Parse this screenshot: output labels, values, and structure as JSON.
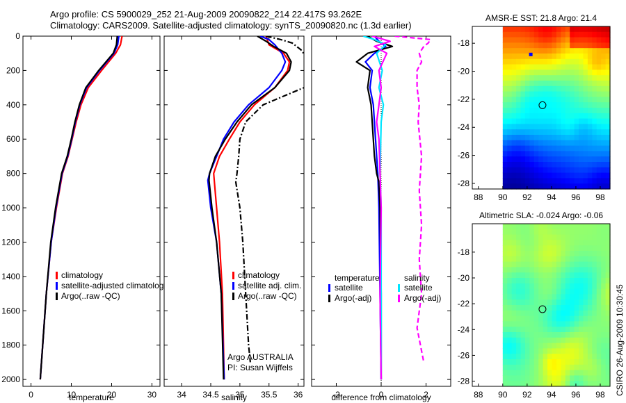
{
  "header": {
    "line1": "Argo profile: CS 5900029_252 21-Aug-2009 20090822_214 22.417S 93.262E",
    "line2": "Climatology: CARS2009. Satellite-adjusted climatology: synTS_20090820.nc (1.3d earlier)"
  },
  "stamp": "CSIRO 26-Aug-2009 10:30:45",
  "colors": {
    "climatology": "#ff0000",
    "satellite": "#0000ff",
    "argo": "#000000",
    "diff_sal_satellite": "#00e5ff",
    "diff_sal_argo": "#ff00ff"
  },
  "chart_data": [
    {
      "type": "line",
      "panel": "temperature",
      "xlabel": "temperature",
      "ylabel": "",
      "xlim": [
        -2,
        32
      ],
      "ylim": [
        2040,
        0
      ],
      "xticks": [
        0,
        10,
        20,
        30
      ],
      "yticks": [
        0,
        200,
        400,
        600,
        800,
        1000,
        1200,
        1400,
        1600,
        1800,
        2000
      ],
      "legend": {
        "position": "lower-right",
        "entries": [
          "climatology",
          "satellite-adjusted climatology",
          "Argo(..raw -QC)"
        ]
      },
      "series": [
        {
          "name": "climatology",
          "color": "#ff0000",
          "depth": [
            0,
            50,
            100,
            200,
            300,
            400,
            500,
            600,
            700,
            800,
            1000,
            1200,
            1500,
            2000
          ],
          "values": [
            22.6,
            22.2,
            21.0,
            17.5,
            14.2,
            12.4,
            11.2,
            10.2,
            9.2,
            7.8,
            6.3,
            5.0,
            3.8,
            2.3
          ]
        },
        {
          "name": "satellite-adjusted climatology",
          "color": "#0000ff",
          "depth": [
            0,
            50,
            100,
            200,
            300,
            400,
            500,
            600,
            700,
            800,
            1000,
            1200,
            1500,
            2000
          ],
          "values": [
            21.8,
            21.5,
            20.6,
            17.0,
            13.8,
            12.1,
            11.0,
            10.1,
            9.1,
            7.7,
            6.2,
            5.0,
            3.8,
            2.3
          ]
        },
        {
          "name": "Argo(..raw -QC)",
          "color": "#000000",
          "depth": [
            0,
            50,
            100,
            200,
            300,
            400,
            500,
            600,
            700,
            800,
            1000,
            1200,
            1500,
            2000
          ],
          "values": [
            21.4,
            21.2,
            20.4,
            16.8,
            13.6,
            12.0,
            10.9,
            10.0,
            9.0,
            7.6,
            6.1,
            4.9,
            3.8,
            2.3
          ]
        }
      ]
    },
    {
      "type": "line",
      "panel": "salinity",
      "xlabel": "salinity",
      "xlim": [
        33.7,
        36.1
      ],
      "ylim": [
        2040,
        0
      ],
      "xticks": [
        34,
        34.5,
        35,
        35.5,
        36
      ],
      "legend": {
        "position": "lower-right",
        "entries": [
          "climatology",
          "satellite adj. clim.",
          "Argo(..raw -QC)"
        ]
      },
      "annotation": [
        "Argo AUSTRALIA",
        "PI: Susan Wijffels"
      ],
      "series": [
        {
          "name": "climatology",
          "color": "#ff0000",
          "depth": [
            0,
            50,
            100,
            150,
            200,
            300,
            400,
            500,
            600,
            700,
            800,
            1000,
            1200,
            1500,
            2000
          ],
          "values": [
            35.45,
            35.5,
            35.75,
            35.85,
            35.82,
            35.6,
            35.25,
            35.0,
            34.82,
            34.65,
            34.55,
            34.6,
            34.65,
            34.7,
            34.73
          ]
        },
        {
          "name": "satellite adj. clim.",
          "color": "#0000ff",
          "depth": [
            0,
            20,
            50,
            100,
            150,
            200,
            300,
            400,
            500,
            600,
            700,
            800,
            840,
            1000,
            1200,
            1500,
            2000
          ],
          "values": [
            35.35,
            35.5,
            35.6,
            35.72,
            35.78,
            35.72,
            35.5,
            35.15,
            34.9,
            34.72,
            34.6,
            34.48,
            34.45,
            34.5,
            34.6,
            34.68,
            34.73
          ]
        },
        {
          "name": "Argo(..raw -QC)",
          "color": "#000000",
          "depth": [
            0,
            30,
            60,
            100,
            150,
            200,
            300,
            400,
            500,
            600,
            700,
            800,
            840,
            1000,
            1200,
            1500,
            2000
          ],
          "values": [
            35.3,
            35.45,
            35.58,
            35.8,
            35.88,
            35.85,
            35.6,
            35.2,
            34.95,
            34.75,
            34.58,
            34.48,
            34.47,
            34.52,
            34.6,
            34.68,
            34.72
          ]
        },
        {
          "name": "Argo(..raw -QC) dashed",
          "color": "#000000",
          "depth": [
            0,
            20,
            40,
            80,
            150,
            250,
            300,
            400,
            500,
            600,
            700,
            800,
            850,
            1000,
            1200,
            1500,
            1800,
            1900
          ],
          "values": [
            35.45,
            35.7,
            35.9,
            36.05,
            36.2,
            36.4,
            36.1,
            35.4,
            35.1,
            35.0,
            34.98,
            34.95,
            34.93,
            35.0,
            35.05,
            35.1,
            35.15,
            35.18
          ]
        }
      ]
    },
    {
      "type": "line",
      "panel": "difference",
      "xlabel": "difference from climatology",
      "xlim": [
        -3.1,
        3.1
      ],
      "ylim": [
        2040,
        0
      ],
      "xticks": [
        -2,
        0,
        2
      ],
      "legend": {
        "position": "lower",
        "groups": [
          {
            "title": "temperature",
            "entries": [
              "satellite",
              "Argo(-adj)"
            ]
          },
          {
            "title": "salinity",
            "entries": [
              "satellite",
              "Argo(-adj)"
            ]
          }
        ]
      },
      "series": [
        {
          "name": "temperature satellite",
          "color": "#0000ff",
          "depth": [
            0,
            30,
            60,
            100,
            150,
            200,
            300,
            400,
            500,
            600,
            700,
            800,
            1000,
            1500,
            2000
          ],
          "values": [
            -0.3,
            -0.1,
            0.2,
            -0.3,
            -0.7,
            -0.4,
            -0.5,
            -0.35,
            -0.3,
            -0.25,
            -0.2,
            -0.15,
            -0.1,
            -0.05,
            0.0
          ]
        },
        {
          "name": "temperature Argo(-adj)",
          "color": "#000000",
          "depth": [
            0,
            30,
            60,
            100,
            150,
            200,
            300,
            400,
            500,
            600,
            700,
            800,
            850,
            1000,
            1500,
            2000
          ],
          "values": [
            -0.6,
            -0.2,
            0.5,
            -0.6,
            -1.1,
            -0.5,
            -0.6,
            -0.45,
            -0.4,
            -0.35,
            -0.3,
            -0.2,
            -0.1,
            -0.05,
            0.0,
            0.0
          ]
        },
        {
          "name": "salinity satellite",
          "color": "#00e5ff",
          "depth": [
            0,
            20,
            50,
            100,
            200,
            300,
            400,
            500,
            800,
            1000,
            1500,
            2000
          ],
          "values": [
            -0.8,
            -0.3,
            0.2,
            -0.2,
            0.05,
            -0.1,
            0.1,
            0.0,
            -0.05,
            0.0,
            0.0,
            0.0
          ]
        },
        {
          "name": "salinity Argo(-adj)",
          "color": "#ff00ff",
          "depth": [
            0,
            30,
            60,
            100,
            200,
            300,
            400,
            500,
            600,
            800,
            1000,
            1500,
            2000
          ],
          "values": [
            -0.4,
            0.4,
            -0.3,
            0.25,
            -0.1,
            0.0,
            -0.1,
            -0.2,
            -0.1,
            -0.05,
            0.0,
            -0.05,
            0.0
          ]
        },
        {
          "name": "salinity dashed",
          "color": "#ff00ff",
          "depth": [
            0,
            20,
            40,
            60,
            100,
            150,
            200,
            300,
            400,
            500,
            700,
            900,
            1100,
            1300,
            1500,
            1700,
            1900
          ],
          "values": [
            0.6,
            2.2,
            2.1,
            1.9,
            1.7,
            1.8,
            1.6,
            1.6,
            1.7,
            1.65,
            1.8,
            1.7,
            1.8,
            1.7,
            1.8,
            1.6,
            1.9
          ]
        }
      ]
    },
    {
      "type": "heatmap",
      "panel": "sst_map",
      "title": "AMSR-E SST: 21.8 Argo: 21.4",
      "xlim": [
        87.5,
        98.8
      ],
      "ylim": [
        -28.4,
        -16.8
      ],
      "xticks": [
        88,
        90,
        92,
        94,
        96,
        98
      ],
      "yticks": [
        -18,
        -20,
        -22,
        -24,
        -26,
        -28
      ],
      "marker": {
        "lon": 93.26,
        "lat": -22.42
      },
      "argo_dot": {
        "lon": 92.3,
        "lat": -18.8
      }
    },
    {
      "type": "heatmap",
      "panel": "sla_map",
      "title": "Altimetric SLA: -0.024 Argo: -0.06",
      "xlim": [
        87.5,
        98.8
      ],
      "ylim": [
        -28.4,
        -15.8
      ],
      "xticks": [
        88,
        90,
        92,
        94,
        96,
        98
      ],
      "yticks": [
        -18,
        -20,
        -22,
        -24,
        -26,
        -28
      ],
      "marker": {
        "lon": 93.26,
        "lat": -22.42
      }
    }
  ]
}
